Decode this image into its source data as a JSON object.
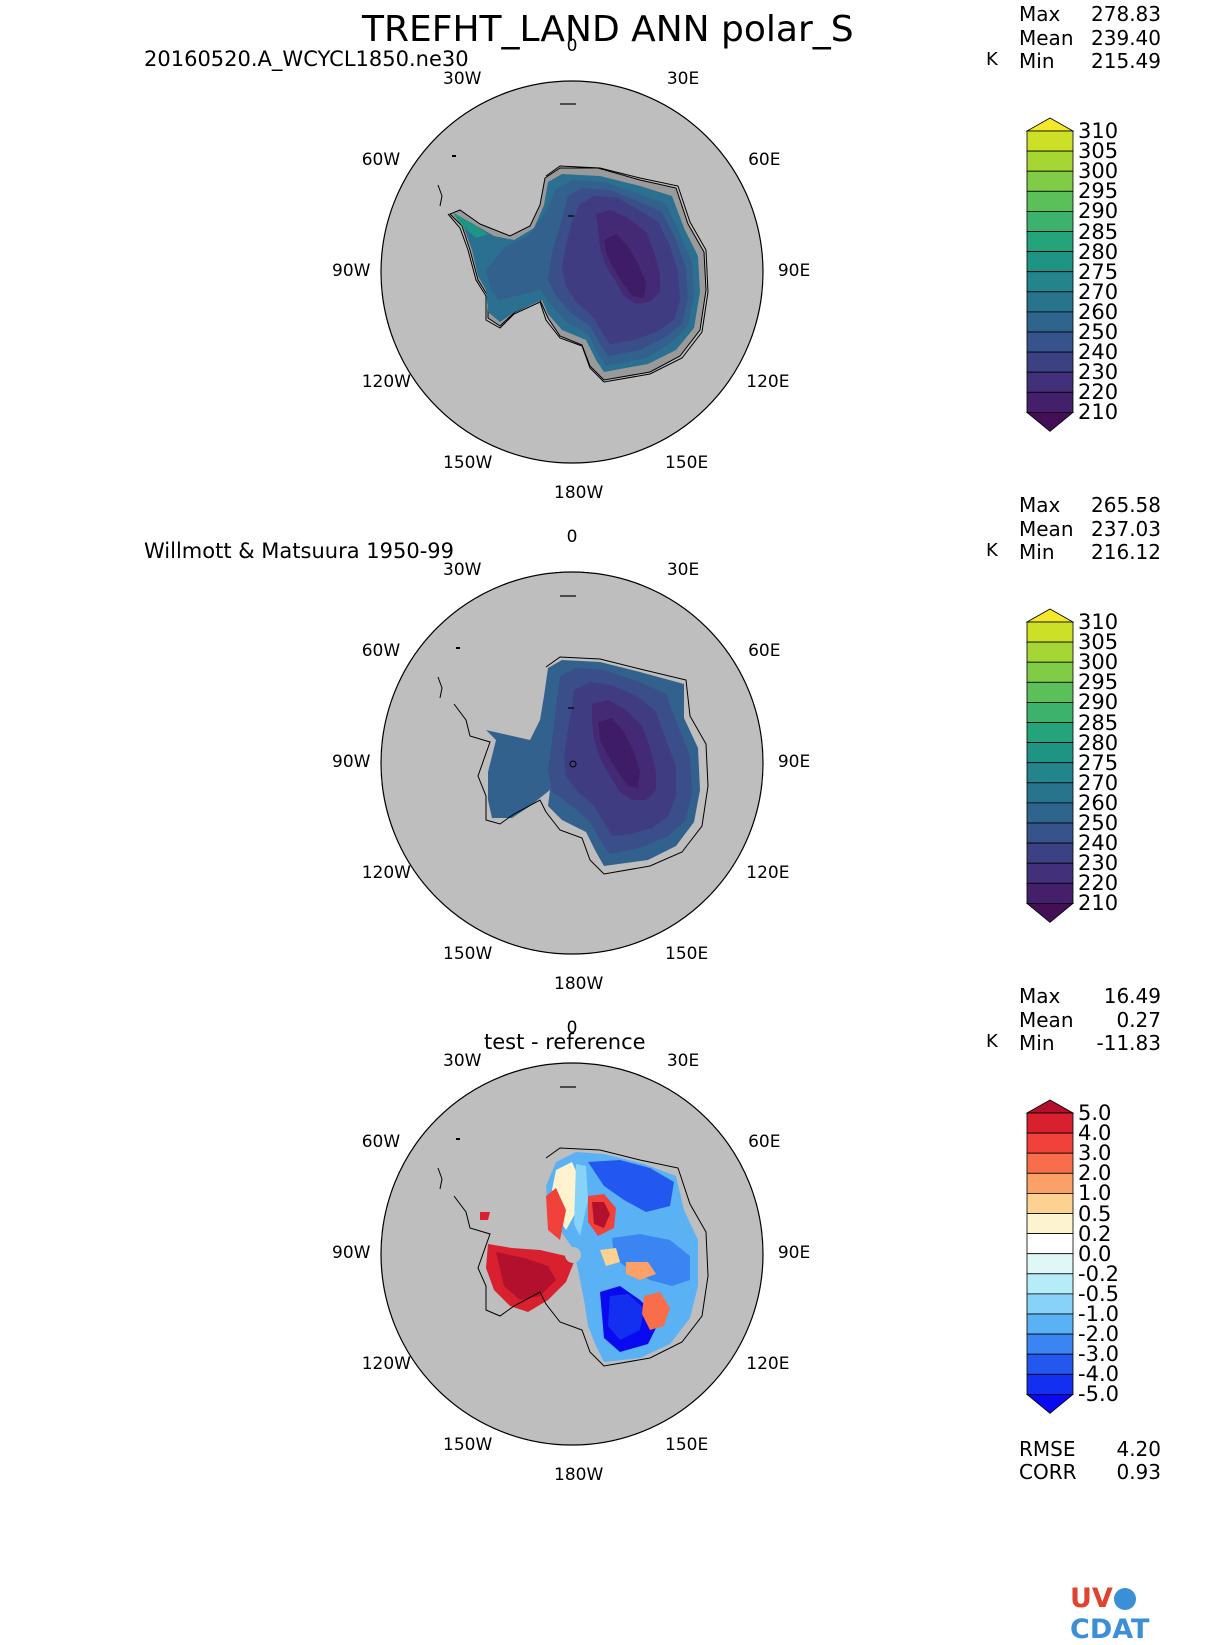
{
  "title": "TREFHT_LAND ANN polar_S",
  "panels": [
    {
      "id": "test",
      "subtitle": "20160520.A_WCYCL1850.ne30",
      "stats": {
        "max_label": "Max",
        "max": "278.83",
        "mean_label": "Mean",
        "mean": "239.40",
        "unit": "K",
        "min_label": "Min",
        "min": "215.49"
      },
      "colorbar_levels": [
        "310",
        "305",
        "300",
        "295",
        "290",
        "285",
        "280",
        "275",
        "270",
        "260",
        "250",
        "240",
        "230",
        "220",
        "210"
      ],
      "colorbar_colors": [
        "#f5e82a",
        "#cde028",
        "#a6d634",
        "#80cc47",
        "#5bbf5a",
        "#3db26c",
        "#25a37a",
        "#1f9484",
        "#23848b",
        "#29748d",
        "#2f648d",
        "#36538b",
        "#3c4184",
        "#42307a",
        "#44206a",
        "#440f56"
      ]
    },
    {
      "id": "reference",
      "subtitle": "Willmott & Matsuura 1950-99",
      "stats": {
        "max_label": "Max",
        "max": "265.58",
        "mean_label": "Mean",
        "mean": "237.03",
        "unit": "K",
        "min_label": "Min",
        "min": "216.12"
      },
      "colorbar_levels": [
        "310",
        "305",
        "300",
        "295",
        "290",
        "285",
        "280",
        "275",
        "270",
        "260",
        "250",
        "240",
        "230",
        "220",
        "210"
      ],
      "colorbar_colors": [
        "#f5e82a",
        "#cde028",
        "#a6d634",
        "#80cc47",
        "#5bbf5a",
        "#3db26c",
        "#25a37a",
        "#1f9484",
        "#23848b",
        "#29748d",
        "#2f648d",
        "#36538b",
        "#3c4184",
        "#42307a",
        "#44206a",
        "#440f56"
      ]
    },
    {
      "id": "diff",
      "subtitle": "test - reference",
      "stats": {
        "max_label": "Max",
        "max": "16.49",
        "mean_label": "Mean",
        "mean": "0.27",
        "unit": "K",
        "min_label": "Min",
        "min": "-11.83"
      },
      "colorbar_levels": [
        "5.0",
        "4.0",
        "3.0",
        "2.0",
        "1.0",
        "0.5",
        "0.2",
        "0.0",
        "-0.2",
        "-0.5",
        "-1.0",
        "-2.0",
        "-3.0",
        "-4.0",
        "-5.0"
      ],
      "colorbar_colors": [
        "#b2102d",
        "#d8202e",
        "#f0413a",
        "#f86d4a",
        "#fba066",
        "#fcd191",
        "#fdf3cf",
        "#ffffff",
        "#e0f7f8",
        "#b5ecf7",
        "#86d3f7",
        "#5ab2f5",
        "#3a85f2",
        "#2358f0",
        "#1330f0",
        "#0a0af0"
      ],
      "metrics": {
        "rmse_label": "RMSE",
        "rmse": "4.20",
        "corr_label": "CORR",
        "corr": "0.93"
      }
    }
  ],
  "longitude_labels": {
    "n0": "0",
    "e30": "30E",
    "e60": "60E",
    "e90": "90E",
    "e120": "120E",
    "e150": "150E",
    "s180": "180W",
    "w150": "150W",
    "w120": "120W",
    "w90": "90W",
    "w60": "60W",
    "w30": "30W"
  },
  "map_colors": {
    "ocean": "#bebebe",
    "outline": "#000000"
  },
  "logo": {
    "text_a": "UV",
    "text_b": "CDAT"
  }
}
